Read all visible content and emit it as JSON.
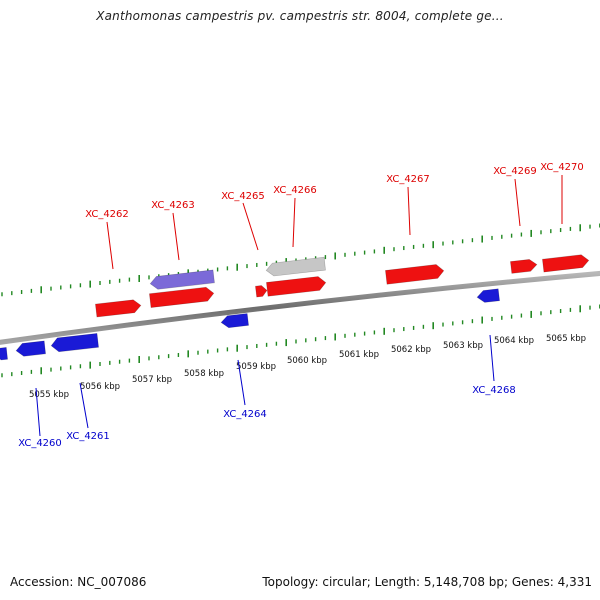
{
  "title": "Xanthomonas campestris pv. campestris str. 8004, complete ge...",
  "footer": {
    "accession": "Accession: NC_007086",
    "summary": "Topology: circular; Length: 5,148,708 bp; Genes: 4,331"
  },
  "colors": {
    "forward_gene": "#ee1111",
    "reverse_gene": "#1a1ad6",
    "pseudo_gene": "#c6c6c6",
    "forward_operon": "#7b6ad8",
    "ticks": "#228822",
    "backbone": "#888888",
    "label_forward": "#dd0000",
    "label_reverse": "#0000cc"
  },
  "axis": {
    "unit": "kbp",
    "kbp_labels": [
      "5055 kbp",
      "5056 kbp",
      "5057 kbp",
      "5058 kbp",
      "5059 kbp",
      "5060 kbp",
      "5061 kbp",
      "5062 kbp",
      "5063 kbp",
      "5064 kbp",
      "5065 kbp"
    ]
  },
  "gene_labels": {
    "forward": [
      "XC_4262",
      "XC_4263",
      "XC_4265",
      "XC_4266",
      "XC_4267",
      "XC_4269",
      "XC_4270"
    ],
    "reverse": [
      "XC_4260",
      "XC_4261",
      "XC_4264",
      "XC_4268"
    ]
  }
}
